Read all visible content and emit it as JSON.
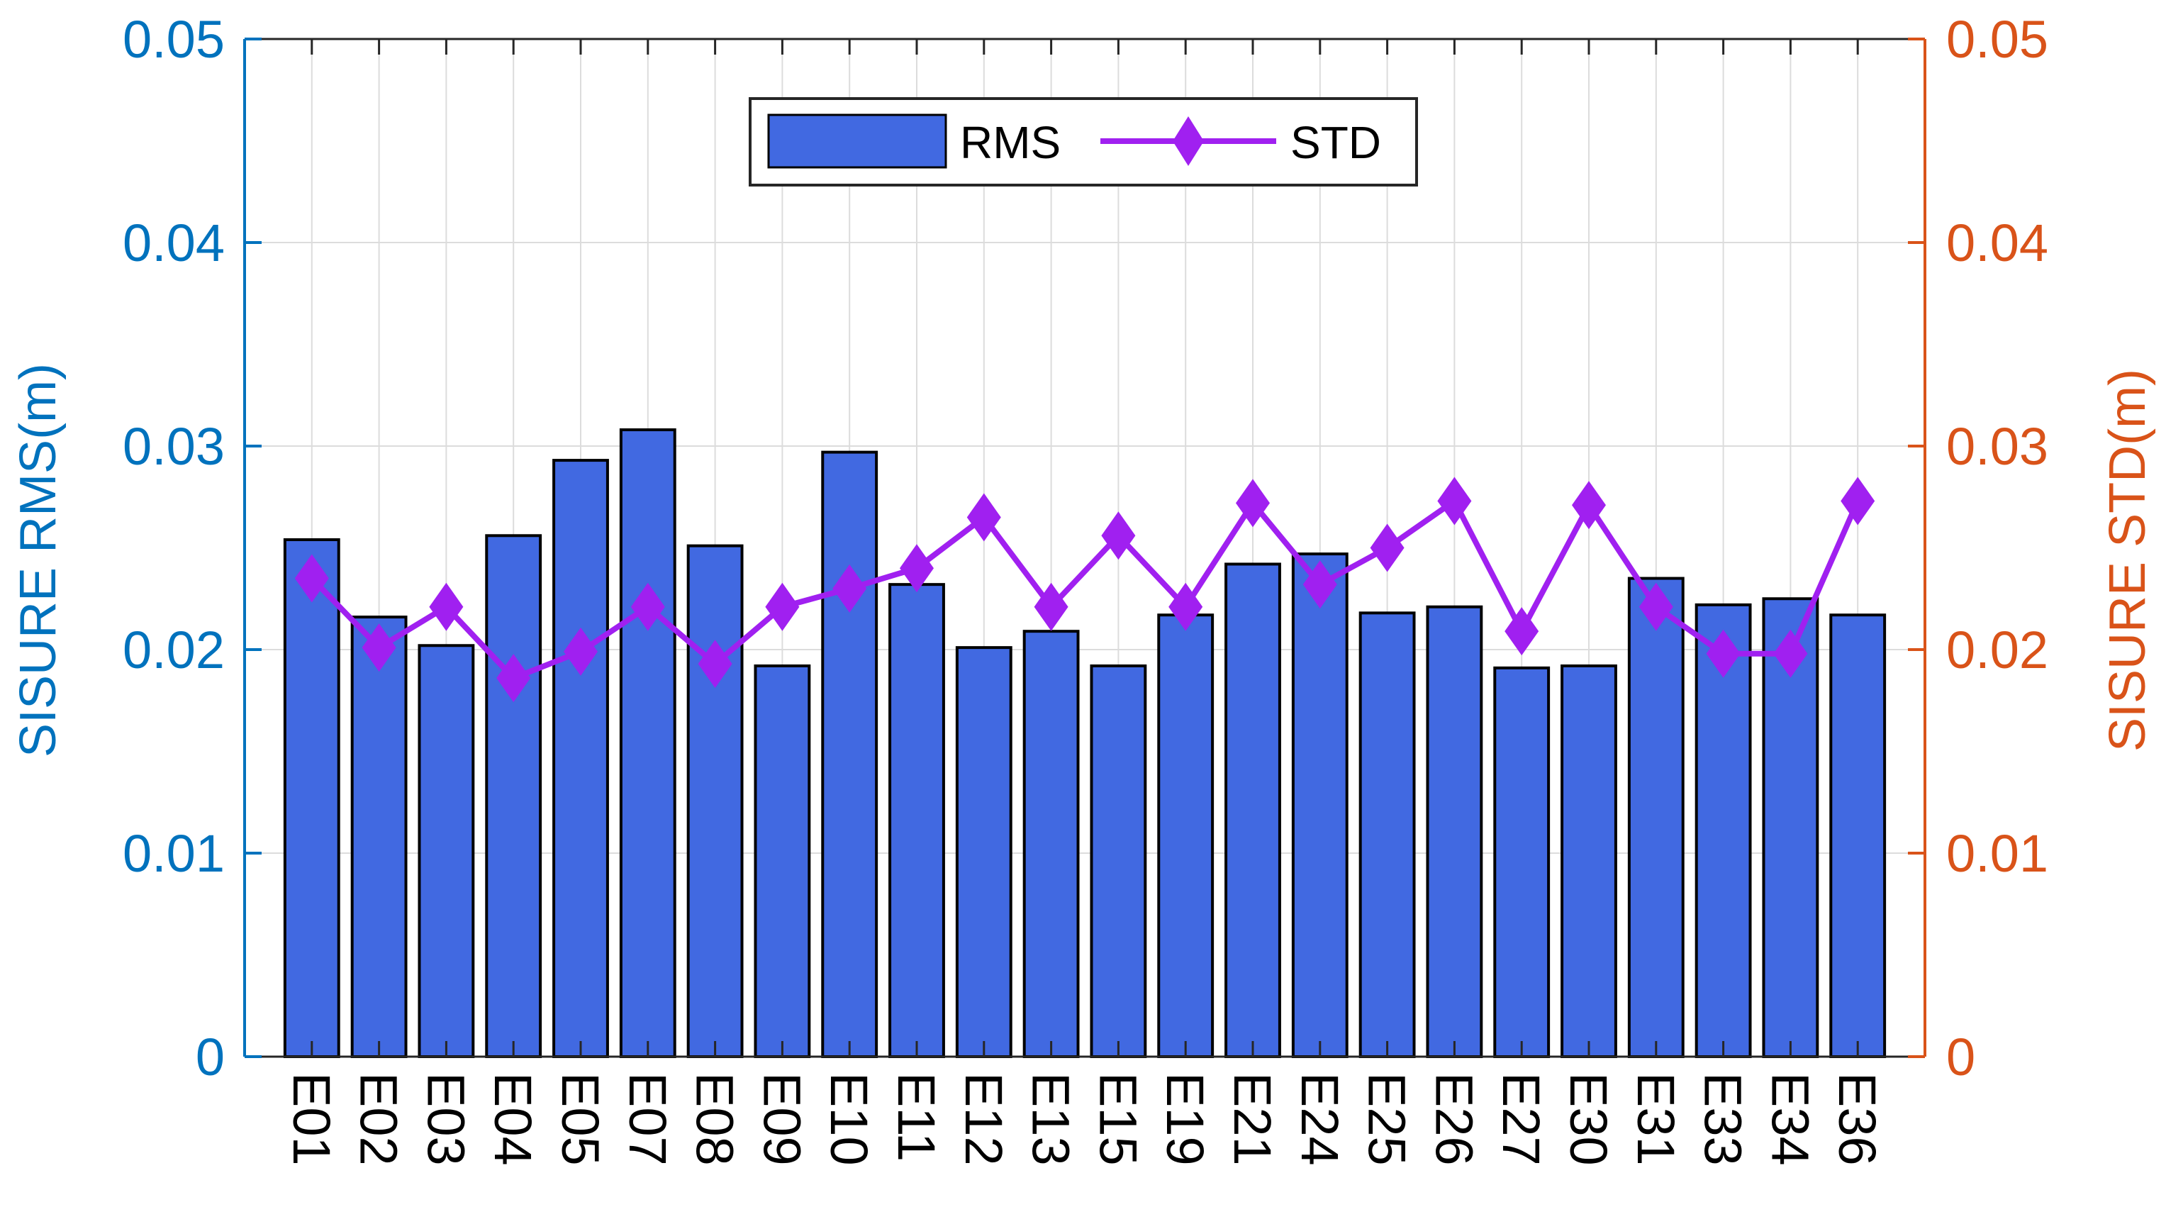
{
  "chart_data": {
    "type": "bar+line",
    "categories": [
      "E01",
      "E02",
      "E03",
      "E04",
      "E05",
      "E07",
      "E08",
      "E09",
      "E10",
      "E11",
      "E12",
      "E13",
      "E15",
      "E19",
      "E21",
      "E24",
      "E25",
      "E26",
      "E27",
      "E30",
      "E31",
      "E33",
      "E34",
      "E36"
    ],
    "series": [
      {
        "name": "RMS",
        "type": "bar",
        "axis": "left",
        "color": "#4169E1",
        "values": [
          0.0254,
          0.0216,
          0.0202,
          0.0256,
          0.0293,
          0.0308,
          0.0251,
          0.0192,
          0.0297,
          0.0232,
          0.0201,
          0.0209,
          0.0192,
          0.0217,
          0.0242,
          0.0247,
          0.0218,
          0.0221,
          0.0191,
          0.0192,
          0.0235,
          0.0222,
          0.0225,
          0.0217
        ]
      },
      {
        "name": "STD",
        "type": "line",
        "axis": "right",
        "color": "#A020F0",
        "marker": "diamond",
        "values": [
          0.0235,
          0.0201,
          0.0221,
          0.0186,
          0.0199,
          0.0221,
          0.0193,
          0.0221,
          0.023,
          0.024,
          0.0265,
          0.0221,
          0.0256,
          0.0221,
          0.0272,
          0.0232,
          0.025,
          0.0273,
          0.0209,
          0.0271,
          0.0221,
          0.0198,
          0.0198,
          0.0273
        ]
      }
    ],
    "ylabel_left": "SISURE RMS(m)",
    "ylabel_right": "SISURE STD(m)",
    "ylim_left": [
      0,
      0.05
    ],
    "ylim_right": [
      0,
      0.05
    ],
    "yticks_left": [
      "0",
      "0.01",
      "0.02",
      "0.03",
      "0.04",
      "0.05"
    ],
    "yticks_right": [
      "0",
      "0.01",
      "0.02",
      "0.03",
      "0.04",
      "0.05"
    ],
    "grid": true,
    "legend": {
      "position": "top-center",
      "entries": [
        "RMS",
        "STD"
      ]
    },
    "colors": {
      "left_axis": "#0072BD",
      "right_axis": "#D95319",
      "grid": "#dcdcdc"
    }
  }
}
